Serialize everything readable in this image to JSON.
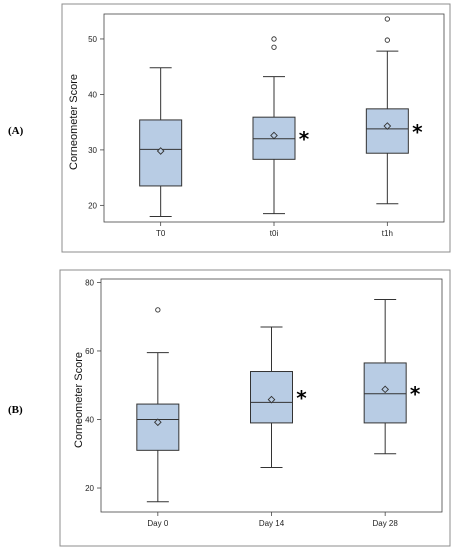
{
  "chart_data": [
    {
      "type": "box",
      "panel_label": "(A)",
      "title": "",
      "xlabel": "",
      "ylabel": "Corneometer Score",
      "ylim": [
        17,
        54.5
      ],
      "yticks": [
        20,
        30,
        40,
        50
      ],
      "box_color": "#b8cce4",
      "categories": [
        "T0",
        "t0i",
        "t1h"
      ],
      "boxes": [
        {
          "category": "T0",
          "min": 18.0,
          "q1": 23.5,
          "median": 30.1,
          "q3": 35.4,
          "max": 44.8,
          "mean": 29.8,
          "outliers": [],
          "significance": ""
        },
        {
          "category": "t0i",
          "min": 18.5,
          "q1": 28.3,
          "median": 32.0,
          "q3": 35.9,
          "max": 43.2,
          "mean": 32.6,
          "outliers": [
            48.5,
            50.0
          ],
          "significance": "*"
        },
        {
          "category": "t1h",
          "min": 20.3,
          "q1": 29.4,
          "median": 33.8,
          "q3": 37.4,
          "max": 47.8,
          "mean": 34.3,
          "outliers": [
            49.8,
            53.6
          ],
          "significance": "*"
        }
      ]
    },
    {
      "type": "box",
      "panel_label": "(B)",
      "title": "",
      "xlabel": "",
      "ylabel": "Corneometer Score",
      "ylim": [
        13,
        81
      ],
      "yticks": [
        20,
        40,
        60,
        80
      ],
      "box_color": "#b8cce4",
      "categories": [
        "Day 0",
        "Day 14",
        "Day 28"
      ],
      "boxes": [
        {
          "category": "Day 0",
          "min": 16.0,
          "q1": 31.0,
          "median": 40.0,
          "q3": 44.5,
          "max": 59.5,
          "mean": 39.2,
          "outliers": [
            72.0
          ],
          "significance": ""
        },
        {
          "category": "Day 14",
          "min": 26.0,
          "q1": 39.0,
          "median": 45.0,
          "q3": 54.0,
          "max": 67.0,
          "mean": 45.8,
          "outliers": [],
          "significance": "*"
        },
        {
          "category": "Day 28",
          "min": 30.0,
          "q1": 39.0,
          "median": 47.5,
          "q3": 56.5,
          "max": 75.0,
          "mean": 48.8,
          "outliers": [],
          "significance": "*"
        }
      ]
    }
  ]
}
